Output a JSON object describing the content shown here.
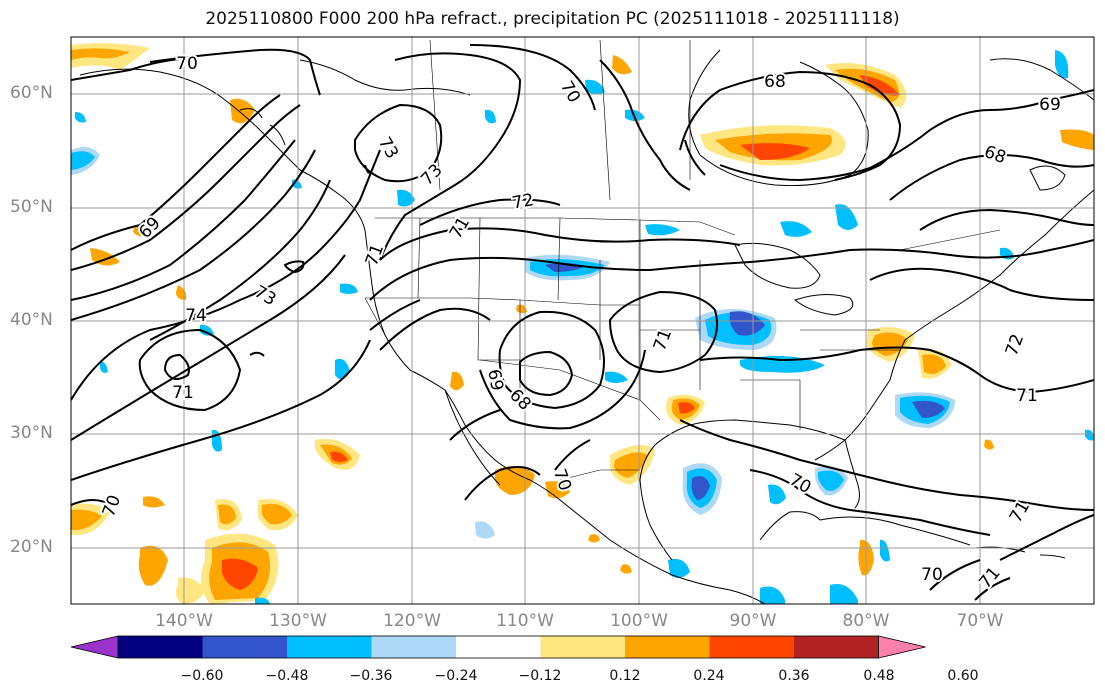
{
  "title": "2025110800 F000 200 hPa refract., precipitation PC (2025111018 - 2025111118)",
  "lat_labels": [
    "60°N",
    "50°N",
    "40°N",
    "30°N",
    "20°N"
  ],
  "lon_labels": [
    "140°W",
    "130°W",
    "120°W",
    "110°W",
    "100°W",
    "90°W",
    "80°W",
    "70°W"
  ],
  "contour_labels": [
    "70",
    "70",
    "68",
    "69",
    "73",
    "73",
    "72",
    "71",
    "69",
    "74",
    "73",
    "71",
    "68",
    "71",
    "69",
    "68",
    "70",
    "70",
    "72",
    "71",
    "70",
    "70",
    "71",
    "71",
    "71"
  ],
  "colorbar": {
    "tick_labels": [
      "−0.60",
      "−0.48",
      "−0.36",
      "−0.24",
      "−0.12",
      "0.12",
      "0.24",
      "0.36",
      "0.48",
      "0.60"
    ],
    "colors": [
      "#9933cc",
      "#000080",
      "#3355cc",
      "#00bfff",
      "#add8f6",
      "#ffffff",
      "#ffe680",
      "#ffa500",
      "#ff4500",
      "#b22222",
      "#ff80aa"
    ]
  }
}
